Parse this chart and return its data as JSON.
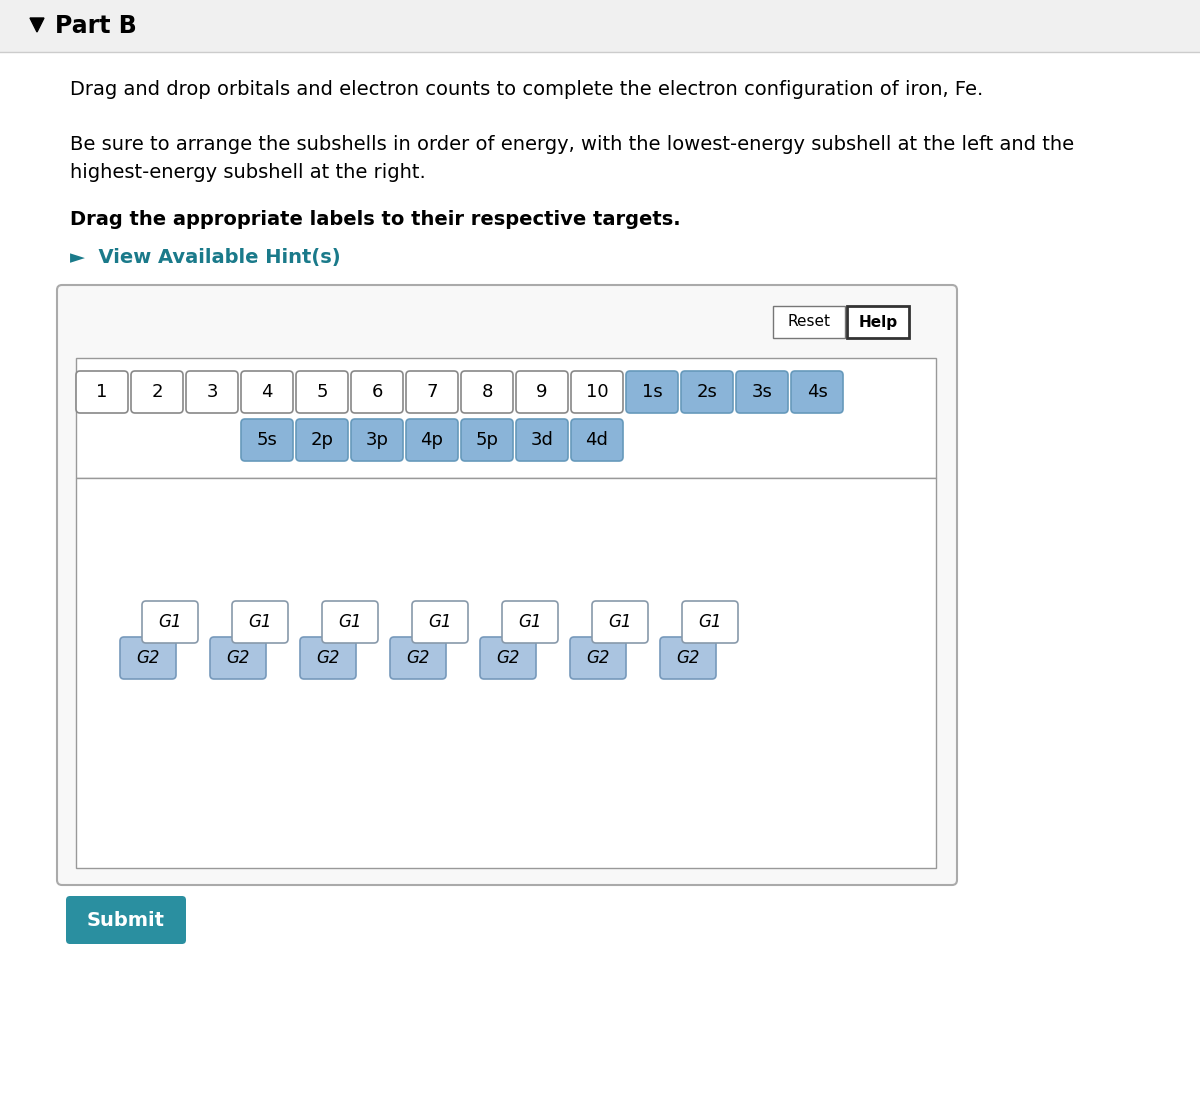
{
  "title": "Part B",
  "line1": "Drag and drop orbitals and electron counts to complete the electron configuration of iron, Fe.",
  "line2a": "Be sure to arrange the subshells in order of energy, with the lowest-energy subshell at the left and the",
  "line2b": "highest-energy subshell at the right.",
  "line3": "Drag the appropriate labels to their respective targets.",
  "hint": "►  View Available Hint(s)",
  "bg_color": "#ffffff",
  "header_bg": "#f0f0f0",
  "header_border": "#cccccc",
  "panel_bg": "#f8f8f8",
  "panel_border": "#aaaaaa",
  "inner_box_bg": "#ffffff",
  "inner_box_border": "#999999",
  "drop_zone_bg": "#ffffff",
  "drop_zone_border": "#999999",
  "white_labels": [
    "1",
    "2",
    "3",
    "4",
    "5",
    "6",
    "7",
    "8",
    "9",
    "10"
  ],
  "blue_labels_row1": [
    "1s",
    "2s",
    "3s",
    "4s"
  ],
  "blue_labels_row2": [
    "5s",
    "2p",
    "3p",
    "4p",
    "5p",
    "3d",
    "4d"
  ],
  "white_btn_fill": "#ffffff",
  "white_btn_border": "#888888",
  "blue_btn_fill": "#8ab4d8",
  "blue_btn_border": "#6699bb",
  "g1_fill": "#ffffff",
  "g1_border": "#8899aa",
  "g2_fill": "#aac4e0",
  "g2_border": "#7799bb",
  "num_g_pairs": 7,
  "submit_bg": "#2a8fa0",
  "submit_text": "Submit",
  "submit_text_color": "#ffffff",
  "reset_text": "Reset",
  "help_text": "Help",
  "hint_color": "#1a7a8a"
}
